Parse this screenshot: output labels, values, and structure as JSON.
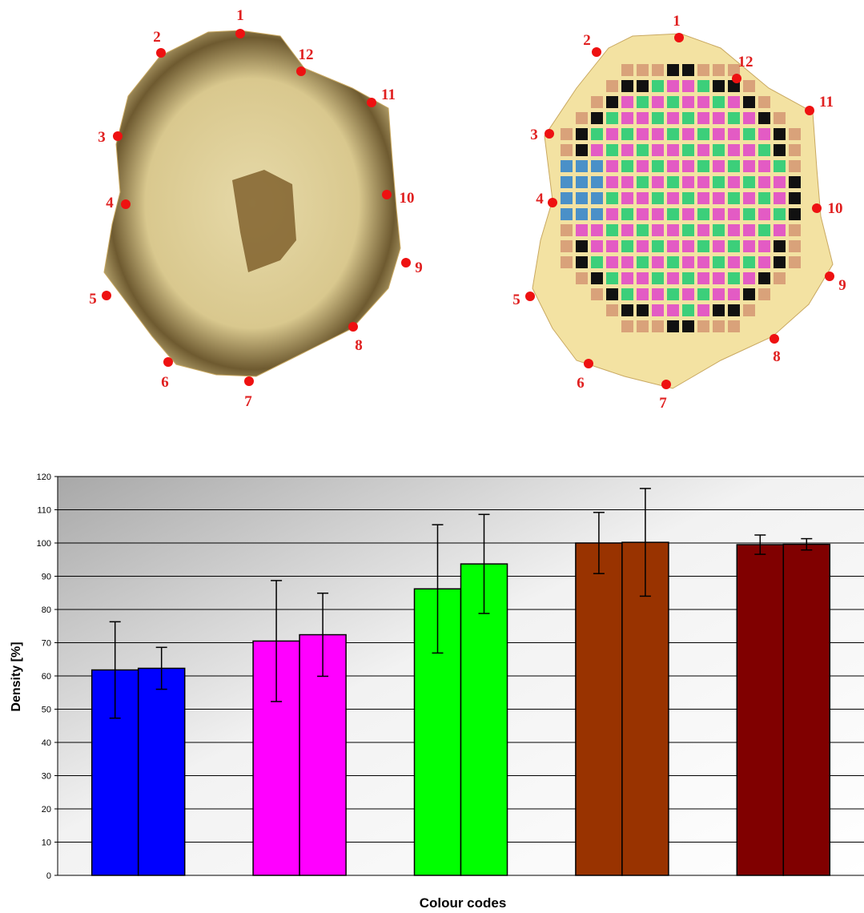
{
  "figure": {
    "images": [
      {
        "markers": [
          "1",
          "2",
          "3",
          "4",
          "5",
          "6",
          "7",
          "8",
          "9",
          "10",
          "11",
          "12"
        ]
      },
      {
        "markers": [
          "1",
          "2",
          "3",
          "4",
          "5",
          "6",
          "7",
          "8",
          "9",
          "10",
          "11",
          "12"
        ]
      }
    ]
  },
  "chart_data": {
    "type": "bar",
    "xlabel": "Colour codes",
    "ylabel": "Density [%]",
    "categories": [
      null,
      null,
      null,
      null,
      null
    ],
    "colors": [
      "#0000ff",
      "#ff00ff",
      "#00ff00",
      "#993300",
      "#800000"
    ],
    "series": [
      {
        "values": [
          61.8,
          70.5,
          86.2,
          100,
          99.5
        ],
        "errors": [
          14.5,
          18.2,
          19.3,
          9.2,
          2.9
        ]
      },
      {
        "values": [
          62.3,
          72.4,
          93.7,
          100.2,
          99.6
        ],
        "errors": [
          6.3,
          12.5,
          14.9,
          16.2,
          1.7
        ]
      }
    ],
    "ylim": [
      0,
      120
    ],
    "yticks": [
      0,
      10,
      20,
      30,
      40,
      50,
      60,
      70,
      80,
      90,
      100,
      110,
      120
    ],
    "grid": true
  }
}
